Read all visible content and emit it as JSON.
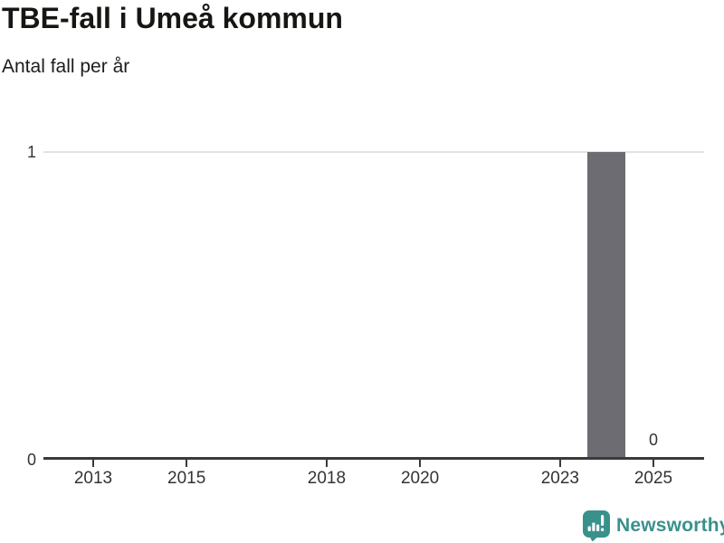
{
  "chart_data": {
    "type": "bar",
    "title": "TBE-fall i Umeå kommun",
    "subtitle": "Antal fall per år",
    "xlabel": "",
    "ylabel": "",
    "ylim": [
      0,
      1
    ],
    "y_ticks": [
      0,
      1
    ],
    "x_axis_year_range": [
      2012,
      2026
    ],
    "x_tick_years": [
      2013,
      2015,
      2018,
      2020,
      2023,
      2025
    ],
    "x_tick_labels": [
      "2013",
      "2015",
      "2018",
      "2020",
      "2023",
      "2025"
    ],
    "grid": "horizontal gridline at y=1 only",
    "legend": "none",
    "bars": [
      {
        "year": 2024,
        "value": 1
      },
      {
        "year": 2025,
        "value": 0,
        "data_label": "0"
      }
    ],
    "colors": {
      "bar": "#6d6c72",
      "gridline": "#e3e3e3",
      "axis": "#3a3a3a",
      "tick_text": "#333333",
      "title_text": "#161613"
    }
  },
  "branding": {
    "logo_text": "Newsworthy",
    "logo_color": "#39918c",
    "logo_icon": "bar-chart-speech-bubble"
  }
}
